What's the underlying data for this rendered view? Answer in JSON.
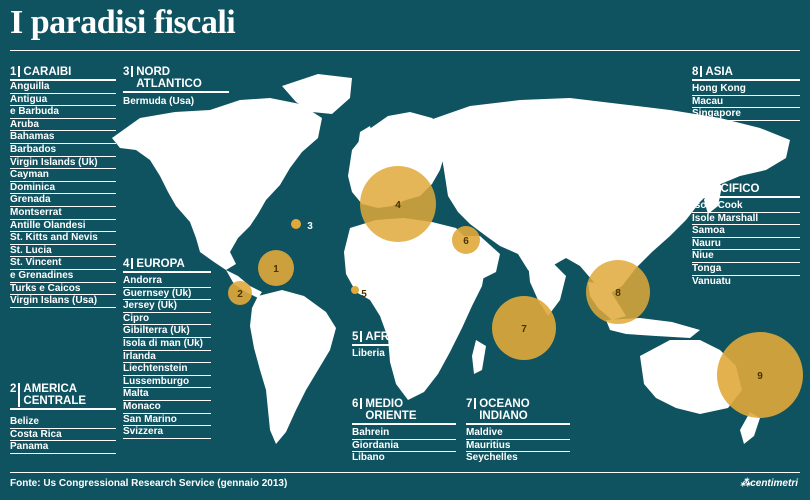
{
  "title": "I paradisi fiscali",
  "regions": [
    {
      "num": "1",
      "name": "CARAIBI",
      "items": [
        "Anguilla",
        "Antigua",
        "e Barbuda",
        "Aruba",
        "Bahamas",
        "Barbados",
        "Virgin Islands (Uk)",
        "Cayman",
        "Dominica",
        "Grenada",
        "Montserrat",
        "Antille Olandesi",
        "St. Kitts and Nevis",
        "St. Lucia",
        "St. Vincent",
        "e Grenadines",
        "Turks e Caicos",
        "Virgin Islans (Usa)"
      ]
    },
    {
      "num": "2",
      "name": "AMERICA",
      "name2": "CENTRALE",
      "items": [
        "Belize",
        "Costa Rica",
        "Panama"
      ]
    },
    {
      "num": "3",
      "name": "NORD ATLANTICO",
      "items": [
        "Bermuda (Usa)"
      ]
    },
    {
      "num": "4",
      "name": "EUROPA",
      "items": [
        "Andorra",
        "Guernsey (Uk)",
        "Jersey (Uk)",
        "Cipro",
        "Gibilterra (Uk)",
        "Isola di man (Uk)",
        "Irlanda",
        "Liechtenstein",
        "Lussemburgo",
        "Malta",
        "Monaco",
        "San Marino",
        "Svizzera"
      ]
    },
    {
      "num": "5",
      "name": "AFRICA",
      "items": [
        "Liberia"
      ]
    },
    {
      "num": "6",
      "name": "MEDIO ORIENTE",
      "items": [
        "Bahrein",
        "Giordania",
        "Libano"
      ]
    },
    {
      "num": "7",
      "name": "OCEANO INDIANO",
      "items": [
        "Maldive",
        "Mauritius",
        "Seychelles"
      ]
    },
    {
      "num": "8",
      "name": "ASIA",
      "items": [
        "Hong Kong",
        "Macau",
        "Singapore"
      ]
    },
    {
      "num": "9",
      "name": "PACIFICO",
      "items": [
        "Isole Cook",
        "Isole Marshall",
        "Samoa",
        "Nauru",
        "Niue",
        "Tonga",
        "Vanuatu"
      ]
    }
  ],
  "bubbles": [
    {
      "label": "1"
    },
    {
      "label": "2"
    },
    {
      "label": "3"
    },
    {
      "label": "4"
    },
    {
      "label": "5"
    },
    {
      "label": "6"
    },
    {
      "label": "7"
    },
    {
      "label": "8"
    },
    {
      "label": "9"
    }
  ],
  "footer": {
    "source": "Fonte: Us Congressional Research Service (gennaio 2013)",
    "logo": "centimetri"
  },
  "colors": {
    "background": "#0f5260",
    "land": "#ffffff",
    "bubble": "#e0a93a",
    "text": "#ffffff"
  }
}
